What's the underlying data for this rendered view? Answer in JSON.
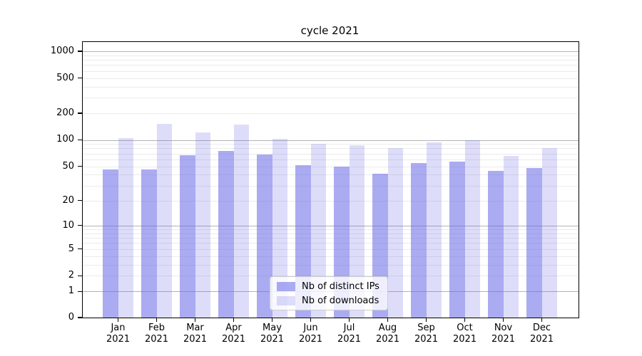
{
  "title": "cycle 2021",
  "colors": {
    "bar_ips": "rgba(102,102,232,0.55)",
    "bar_downloads": "rgba(102,102,232,0.22)",
    "grid_minor": "#ebebeb",
    "grid_major": "#b3b3b3",
    "spine": "#000000"
  },
  "chart_data": {
    "type": "bar",
    "title": "cycle 2021",
    "categories": [
      "Jan 2021",
      "Feb 2021",
      "Mar 2021",
      "Apr 2021",
      "May 2021",
      "Jun 2021",
      "Jul 2021",
      "Aug 2021",
      "Sep 2021",
      "Oct 2021",
      "Nov 2021",
      "Dec 2021"
    ],
    "series": [
      {
        "name": "Nb of distinct IPs",
        "values": [
          46,
          46,
          67,
          75,
          68,
          52,
          50,
          41,
          55,
          57,
          44,
          48
        ]
      },
      {
        "name": "Nb of downloads",
        "values": [
          105,
          152,
          122,
          150,
          103,
          90,
          87,
          81,
          93,
          100,
          66,
          80
        ]
      }
    ],
    "xlabel": "",
    "ylabel": "",
    "yscale": "log1p",
    "ylim": [
      0,
      1270
    ],
    "y_tick_labels": [
      1000,
      500,
      200,
      100,
      50,
      20,
      10,
      5,
      2,
      1,
      0
    ],
    "grid": true,
    "legend_position": "lower center"
  }
}
